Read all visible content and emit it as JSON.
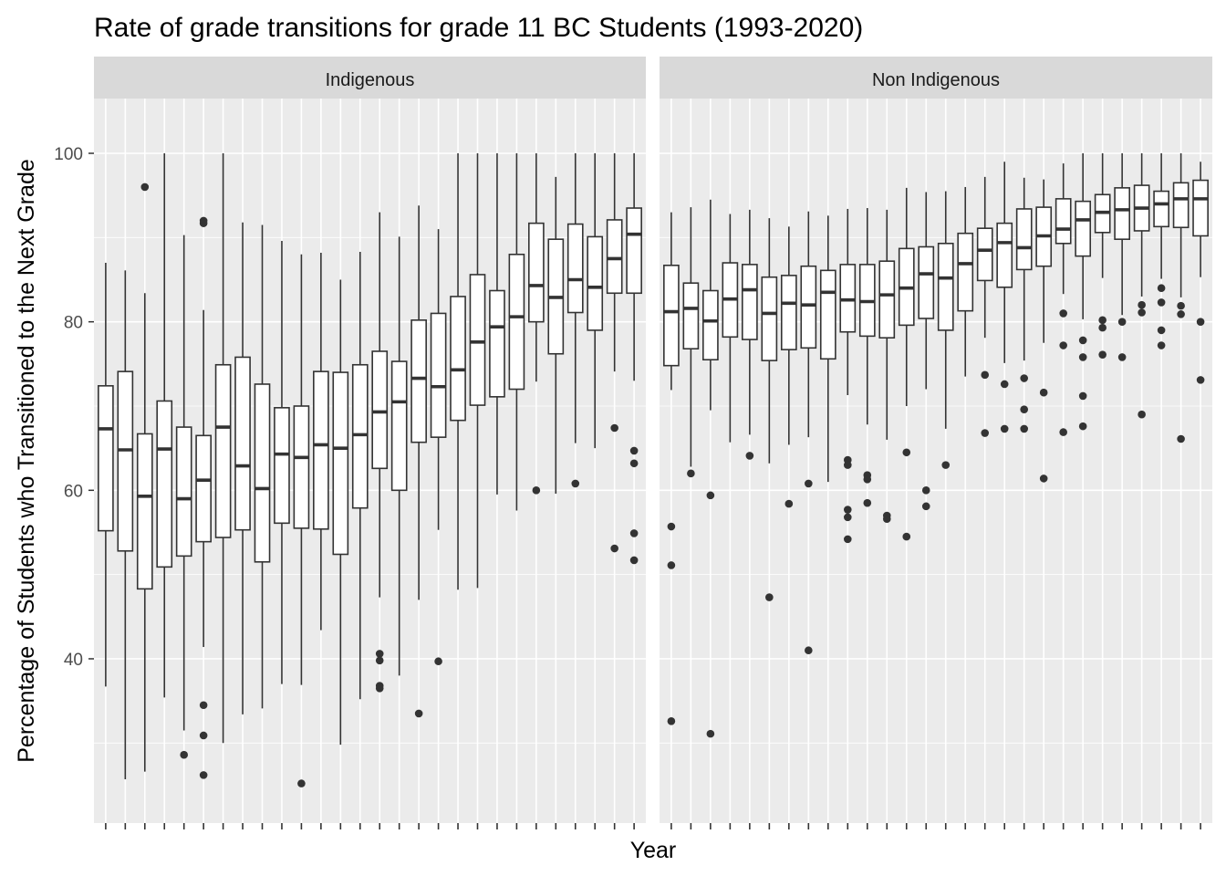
{
  "chart_data": {
    "type": "boxplot",
    "title": "Rate of grade transitions for grade 11 BC Students (1993-2020)",
    "xlabel": "Year",
    "ylabel": "Percentage of Students who Transitioned to the Next Grade",
    "ylim": [
      20.5,
      106.5
    ],
    "yticks": [
      40,
      60,
      80,
      100
    ],
    "grid": true,
    "facets": [
      {
        "label": "Indigenous",
        "boxes": [
          {
            "whisker_low": 36.7,
            "q1": 55.2,
            "median": 67.3,
            "q3": 72.4,
            "whisker_high": 87.0,
            "outliers": []
          },
          {
            "whisker_low": 25.7,
            "q1": 52.8,
            "median": 64.8,
            "q3": 74.1,
            "whisker_high": 86.1,
            "outliers": []
          },
          {
            "whisker_low": 26.6,
            "q1": 48.3,
            "median": 59.3,
            "q3": 66.7,
            "whisker_high": 83.4,
            "outliers": [
              96.0
            ]
          },
          {
            "whisker_low": 35.4,
            "q1": 50.9,
            "median": 64.9,
            "q3": 70.6,
            "whisker_high": 100.0,
            "outliers": []
          },
          {
            "whisker_low": 31.5,
            "q1": 52.2,
            "median": 59.0,
            "q3": 67.5,
            "whisker_high": 90.3,
            "outliers": [
              28.6
            ]
          },
          {
            "whisker_low": 41.4,
            "q1": 53.9,
            "median": 61.2,
            "q3": 66.5,
            "whisker_high": 81.4,
            "outliers": [
              92.0,
              91.7,
              34.5,
              30.9,
              26.2
            ]
          },
          {
            "whisker_low": 30.0,
            "q1": 54.4,
            "median": 67.5,
            "q3": 74.9,
            "whisker_high": 100.0,
            "outliers": []
          },
          {
            "whisker_low": 33.4,
            "q1": 55.3,
            "median": 62.9,
            "q3": 75.8,
            "whisker_high": 91.8,
            "outliers": []
          },
          {
            "whisker_low": 34.1,
            "q1": 51.5,
            "median": 60.2,
            "q3": 72.6,
            "whisker_high": 91.5,
            "outliers": []
          },
          {
            "whisker_low": 37.0,
            "q1": 56.1,
            "median": 64.3,
            "q3": 69.8,
            "whisker_high": 89.6,
            "outliers": []
          },
          {
            "whisker_low": 36.9,
            "q1": 55.5,
            "median": 63.9,
            "q3": 70.0,
            "whisker_high": 88.0,
            "outliers": [
              25.2
            ]
          },
          {
            "whisker_low": 43.4,
            "q1": 55.4,
            "median": 65.4,
            "q3": 74.1,
            "whisker_high": 88.2,
            "outliers": []
          },
          {
            "whisker_low": 29.8,
            "q1": 52.4,
            "median": 65.0,
            "q3": 74.0,
            "whisker_high": 85.0,
            "outliers": []
          },
          {
            "whisker_low": 35.2,
            "q1": 57.9,
            "median": 66.6,
            "q3": 74.9,
            "whisker_high": 88.3,
            "outliers": []
          },
          {
            "whisker_low": 47.3,
            "q1": 62.6,
            "median": 69.3,
            "q3": 76.5,
            "whisker_high": 93.0,
            "outliers": [
              40.6,
              39.8,
              36.8,
              36.5
            ]
          },
          {
            "whisker_low": 38.0,
            "q1": 60.0,
            "median": 70.5,
            "q3": 75.3,
            "whisker_high": 90.1,
            "outliers": []
          },
          {
            "whisker_low": 47.0,
            "q1": 65.7,
            "median": 73.3,
            "q3": 80.2,
            "whisker_high": 93.8,
            "outliers": [
              33.5
            ]
          },
          {
            "whisker_low": 55.3,
            "q1": 66.3,
            "median": 72.3,
            "q3": 81.0,
            "whisker_high": 91.0,
            "outliers": [
              39.7
            ]
          },
          {
            "whisker_low": 48.2,
            "q1": 68.3,
            "median": 74.3,
            "q3": 83.0,
            "whisker_high": 100.0,
            "outliers": []
          },
          {
            "whisker_low": 48.4,
            "q1": 70.1,
            "median": 77.6,
            "q3": 85.6,
            "whisker_high": 100.0,
            "outliers": []
          },
          {
            "whisker_low": 59.5,
            "q1": 71.1,
            "median": 79.4,
            "q3": 83.7,
            "whisker_high": 100.0,
            "outliers": []
          },
          {
            "whisker_low": 57.6,
            "q1": 72.0,
            "median": 80.6,
            "q3": 88.0,
            "whisker_high": 100.0,
            "outliers": []
          },
          {
            "whisker_low": 72.9,
            "q1": 80.0,
            "median": 84.3,
            "q3": 91.7,
            "whisker_high": 100.0,
            "outliers": [
              60.0
            ]
          },
          {
            "whisker_low": 59.6,
            "q1": 76.2,
            "median": 82.9,
            "q3": 89.8,
            "whisker_high": 97.2,
            "outliers": []
          },
          {
            "whisker_low": 65.6,
            "q1": 81.1,
            "median": 85.0,
            "q3": 91.6,
            "whisker_high": 100.0,
            "outliers": [
              60.8
            ]
          },
          {
            "whisker_low": 65.0,
            "q1": 79.0,
            "median": 84.1,
            "q3": 90.1,
            "whisker_high": 100.0,
            "outliers": []
          },
          {
            "whisker_low": 74.1,
            "q1": 83.4,
            "median": 87.5,
            "q3": 92.1,
            "whisker_high": 100.0,
            "outliers": [
              67.4,
              53.1
            ]
          },
          {
            "whisker_low": 73.0,
            "q1": 83.4,
            "median": 90.4,
            "q3": 93.5,
            "whisker_high": 100.0,
            "outliers": [
              64.7,
              63.2,
              54.9,
              51.7
            ]
          }
        ]
      },
      {
        "label": "Non Indigenous",
        "boxes": [
          {
            "whisker_low": 71.9,
            "q1": 74.8,
            "median": 81.2,
            "q3": 86.7,
            "whisker_high": 93.0,
            "outliers": [
              55.7,
              51.1,
              32.6
            ]
          },
          {
            "whisker_low": 62.8,
            "q1": 76.8,
            "median": 81.6,
            "q3": 84.6,
            "whisker_high": 93.6,
            "outliers": [
              62.0
            ]
          },
          {
            "whisker_low": 69.5,
            "q1": 75.5,
            "median": 80.1,
            "q3": 83.7,
            "whisker_high": 94.5,
            "outliers": [
              59.4,
              31.1
            ]
          },
          {
            "whisker_low": 65.7,
            "q1": 78.2,
            "median": 82.7,
            "q3": 87.0,
            "whisker_high": 92.8,
            "outliers": []
          },
          {
            "whisker_low": 66.6,
            "q1": 77.9,
            "median": 83.8,
            "q3": 86.8,
            "whisker_high": 93.3,
            "outliers": [
              64.1
            ]
          },
          {
            "whisker_low": 63.2,
            "q1": 75.4,
            "median": 81.0,
            "q3": 85.3,
            "whisker_high": 92.3,
            "outliers": [
              47.3
            ]
          },
          {
            "whisker_low": 65.4,
            "q1": 76.7,
            "median": 82.2,
            "q3": 85.5,
            "whisker_high": 91.3,
            "outliers": [
              58.4
            ]
          },
          {
            "whisker_low": 66.3,
            "q1": 76.9,
            "median": 82.0,
            "q3": 86.6,
            "whisker_high": 93.1,
            "outliers": [
              60.8,
              41.0
            ]
          },
          {
            "whisker_low": 61.0,
            "q1": 75.6,
            "median": 83.5,
            "q3": 86.1,
            "whisker_high": 92.6,
            "outliers": []
          },
          {
            "whisker_low": 71.3,
            "q1": 78.8,
            "median": 82.6,
            "q3": 86.8,
            "whisker_high": 93.4,
            "outliers": [
              63.6,
              63.0,
              57.7,
              56.8,
              54.2
            ]
          },
          {
            "whisker_low": 67.8,
            "q1": 78.3,
            "median": 82.4,
            "q3": 86.8,
            "whisker_high": 93.5,
            "outliers": [
              61.8,
              61.3,
              58.5
            ]
          },
          {
            "whisker_low": 66.0,
            "q1": 78.1,
            "median": 83.2,
            "q3": 87.2,
            "whisker_high": 93.3,
            "outliers": [
              57.0,
              56.6
            ]
          },
          {
            "whisker_low": 70.0,
            "q1": 79.6,
            "median": 84.0,
            "q3": 88.7,
            "whisker_high": 95.9,
            "outliers": [
              64.5,
              54.5
            ]
          },
          {
            "whisker_low": 72.0,
            "q1": 80.4,
            "median": 85.7,
            "q3": 88.9,
            "whisker_high": 95.4,
            "outliers": [
              60.0,
              58.1
            ]
          },
          {
            "whisker_low": 67.3,
            "q1": 79.0,
            "median": 85.2,
            "q3": 89.3,
            "whisker_high": 95.5,
            "outliers": [
              63.0
            ]
          },
          {
            "whisker_low": 73.5,
            "q1": 81.3,
            "median": 86.9,
            "q3": 90.5,
            "whisker_high": 96.0,
            "outliers": []
          },
          {
            "whisker_low": 78.1,
            "q1": 84.9,
            "median": 88.5,
            "q3": 91.1,
            "whisker_high": 97.2,
            "outliers": [
              73.7,
              66.8
            ]
          },
          {
            "whisker_low": 75.1,
            "q1": 84.1,
            "median": 89.4,
            "q3": 91.7,
            "whisker_high": 99.0,
            "outliers": [
              72.6,
              67.3
            ]
          },
          {
            "whisker_low": 75.4,
            "q1": 86.2,
            "median": 88.8,
            "q3": 93.4,
            "whisker_high": 97.1,
            "outliers": [
              73.3,
              69.6,
              67.3
            ]
          },
          {
            "whisker_low": 77.5,
            "q1": 86.6,
            "median": 90.2,
            "q3": 93.6,
            "whisker_high": 96.9,
            "outliers": [
              71.6,
              61.4
            ]
          },
          {
            "whisker_low": 83.3,
            "q1": 89.3,
            "median": 91.0,
            "q3": 94.6,
            "whisker_high": 98.8,
            "outliers": [
              81.0,
              77.2,
              66.9
            ]
          },
          {
            "whisker_low": 80.3,
            "q1": 87.8,
            "median": 92.1,
            "q3": 94.3,
            "whisker_high": 100.0,
            "outliers": [
              77.8,
              75.8,
              71.2,
              67.6
            ]
          },
          {
            "whisker_low": 85.2,
            "q1": 90.6,
            "median": 93.0,
            "q3": 95.1,
            "whisker_high": 100.0,
            "outliers": [
              80.2,
              79.3,
              76.1
            ]
          },
          {
            "whisker_low": 80.8,
            "q1": 89.8,
            "median": 93.3,
            "q3": 95.9,
            "whisker_high": 100.0,
            "outliers": [
              80.0,
              75.8
            ]
          },
          {
            "whisker_low": 83.0,
            "q1": 90.8,
            "median": 93.5,
            "q3": 96.2,
            "whisker_high": 100.0,
            "outliers": [
              82.0,
              81.1,
              69.0
            ]
          },
          {
            "whisker_low": 85.1,
            "q1": 91.3,
            "median": 94.0,
            "q3": 95.5,
            "whisker_high": 100.0,
            "outliers": [
              84.0,
              82.3,
              79.0,
              77.2
            ]
          },
          {
            "whisker_low": 82.9,
            "q1": 91.2,
            "median": 94.6,
            "q3": 96.5,
            "whisker_high": 100.0,
            "outliers": [
              81.9,
              80.9,
              66.1
            ]
          },
          {
            "whisker_low": 85.3,
            "q1": 90.2,
            "median": 94.6,
            "q3": 96.8,
            "whisker_high": 99.0,
            "outliers": [
              80.0,
              73.1
            ]
          }
        ]
      }
    ]
  }
}
